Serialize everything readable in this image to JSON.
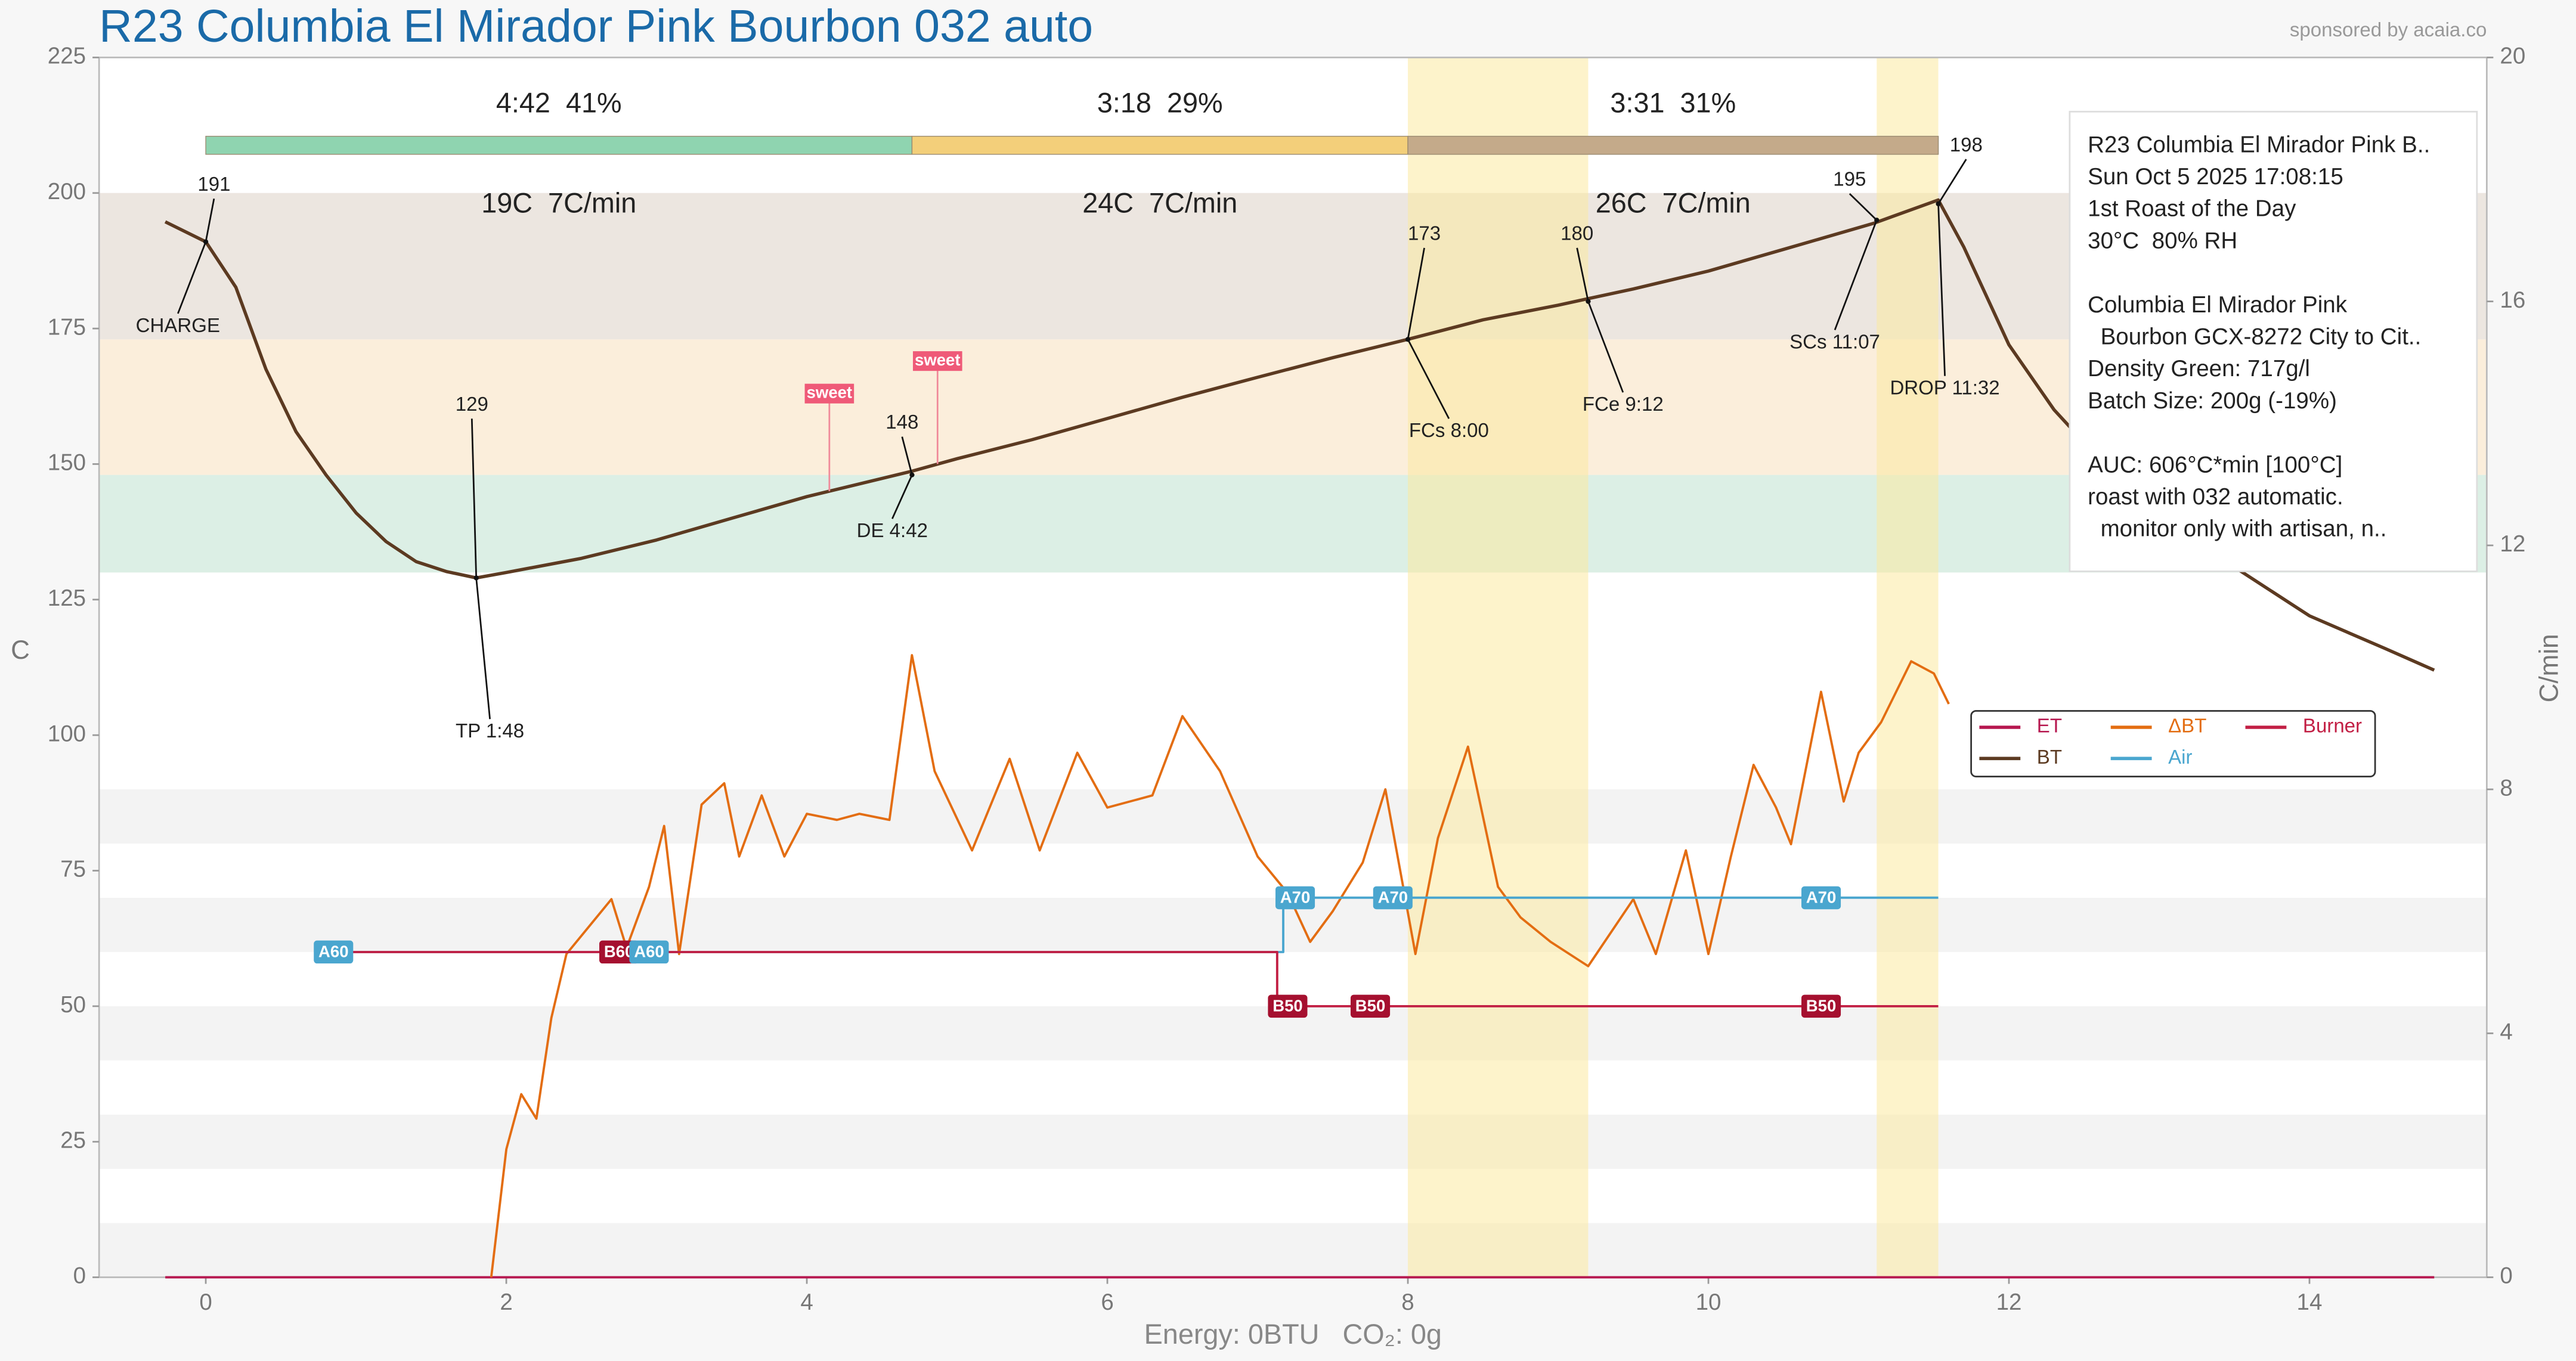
{
  "chart_data": {
    "type": "line",
    "title": "R23 Columbia El Mirador Pink Bourbon 032 auto",
    "watermark": "sponsored by acaia.co",
    "footer": "Energy: 0BTU   CO₂: 0g",
    "ylabel": "C",
    "y2label": "C/min",
    "xlim": [
      -0.71,
      15.18
    ],
    "xticks": [
      0,
      2,
      4,
      6,
      8,
      10,
      12,
      14
    ],
    "ylim": [
      0,
      225
    ],
    "yticks": [
      0,
      25,
      50,
      75,
      100,
      125,
      150,
      175,
      200,
      225
    ],
    "y2lim": [
      0,
      20
    ],
    "y2ticks": [
      0,
      4,
      8,
      12,
      16,
      20
    ],
    "grid": false,
    "legend": "right",
    "series": [
      {
        "name": "ET",
        "color": "#b6174f",
        "x": [
          -0.27,
          14.83
        ],
        "values": [
          0,
          0
        ]
      },
      {
        "name": "BT",
        "color": "#5c3a21",
        "x": [
          -0.27,
          0,
          0.2,
          0.4,
          0.6,
          0.8,
          1.0,
          1.2,
          1.4,
          1.6,
          1.8,
          2.0,
          2.5,
          3.0,
          3.5,
          4.0,
          4.7,
          5.0,
          5.5,
          6.0,
          6.5,
          7.0,
          7.5,
          8.0,
          8.5,
          9.0,
          9.2,
          9.5,
          10.0,
          10.5,
          11.1,
          11.53,
          11.7,
          12.0,
          12.3,
          12.6,
          13.0,
          13.5,
          14.0,
          14.5,
          14.83
        ],
        "values": [
          194.7,
          191,
          182.6,
          167.5,
          156,
          148,
          141,
          135.7,
          132,
          130.2,
          129,
          130,
          132.6,
          136,
          140,
          144,
          148.7,
          151,
          154.5,
          158.4,
          162.3,
          166,
          169.6,
          173,
          176.6,
          179.3,
          180.5,
          182.3,
          185.6,
          189.6,
          194.4,
          198.7,
          190,
          172,
          160,
          151,
          142,
          131,
          122,
          116,
          112
        ]
      },
      {
        "name": "ΔBT",
        "color": "#e36d12",
        "axis": "y2",
        "x": [
          1.9,
          2.0,
          2.1,
          2.2,
          2.3,
          2.4,
          2.6,
          2.7,
          2.8,
          2.95,
          3.05,
          3.15,
          3.3,
          3.45,
          3.55,
          3.7,
          3.85,
          4.0,
          4.2,
          4.35,
          4.55,
          4.7,
          4.85,
          5.1,
          5.35,
          5.55,
          5.8,
          6.0,
          6.3,
          6.5,
          6.75,
          7.0,
          7.2,
          7.35,
          7.5,
          7.7,
          7.85,
          8.05,
          8.2,
          8.4,
          8.6,
          8.75,
          8.95,
          9.2,
          9.5,
          9.65,
          9.85,
          10.0,
          10.15,
          10.3,
          10.45,
          10.55,
          10.75,
          10.9,
          11.0,
          11.15,
          11.35,
          11.5,
          11.6
        ],
        "values": [
          0,
          2.1,
          3.0,
          2.6,
          4.25,
          5.3,
          5.9,
          6.2,
          5.4,
          6.4,
          7.4,
          5.3,
          7.75,
          8.1,
          6.9,
          7.9,
          6.9,
          7.6,
          7.5,
          7.6,
          7.5,
          10.2,
          8.3,
          7.0,
          8.5,
          7.0,
          8.6,
          7.7,
          7.9,
          9.2,
          8.3,
          6.9,
          6.3,
          5.5,
          6.0,
          6.8,
          8.0,
          5.3,
          7.2,
          8.7,
          6.4,
          5.9,
          5.5,
          5.1,
          6.2,
          5.3,
          7.0,
          5.3,
          6.9,
          8.4,
          7.7,
          7.1,
          9.6,
          7.8,
          8.6,
          9.1,
          10.1,
          9.9,
          9.4
        ]
      },
      {
        "name": "Air",
        "color": "#4aa6cf",
        "x": [
          0.72,
          7.17,
          7.17,
          11.53
        ],
        "values": [
          60,
          60,
          70,
          70
        ]
      },
      {
        "name": "Burner",
        "color": "#c21f44",
        "x": [
          0.72,
          7.13,
          7.13,
          11.53
        ],
        "values": [
          60,
          60,
          50,
          50
        ]
      }
    ],
    "step_labels": [
      {
        "text": "A60",
        "x": 0.85,
        "value": 60,
        "series": "Air"
      },
      {
        "text": "B60",
        "x": 2.75,
        "value": 60,
        "series": "Burner"
      },
      {
        "text": "A60",
        "x": 2.95,
        "value": 60,
        "series": "Air"
      },
      {
        "text": "B50",
        "x": 7.2,
        "value": 50,
        "series": "Burner"
      },
      {
        "text": "A70",
        "x": 7.25,
        "value": 70,
        "series": "Air"
      },
      {
        "text": "B50",
        "x": 7.75,
        "value": 50,
        "series": "Burner"
      },
      {
        "text": "A70",
        "x": 7.9,
        "value": 70,
        "series": "Air"
      },
      {
        "text": "B50",
        "x": 10.75,
        "value": 50,
        "series": "Burner"
      },
      {
        "text": "A70",
        "x": 10.75,
        "value": 70,
        "series": "Air"
      }
    ],
    "events": [
      {
        "label": "CHARGE",
        "x": 0,
        "value": 191
      },
      {
        "label": "TP 1:48",
        "x": 1.8,
        "value": 129
      },
      {
        "label": "DE 4:42",
        "x": 4.7,
        "value": 148
      },
      {
        "label": "FCs 8:00",
        "x": 8.0,
        "value": 173
      },
      {
        "label": "FCe 9:12",
        "x": 9.2,
        "value": 180
      },
      {
        "label": "SCs 11:07",
        "x": 11.12,
        "value": 195
      },
      {
        "label": "DROP 11:32",
        "x": 11.53,
        "value": 198
      }
    ],
    "markers": [
      {
        "text": "sweet",
        "x": 4.15,
        "value": 163
      },
      {
        "text": "sweet",
        "x": 4.87,
        "value": 169
      }
    ],
    "phases": [
      {
        "label": "4:42  41%",
        "sub": "19C  7C/min",
        "color": "#8fd4b0"
      },
      {
        "label": "3:18  29%",
        "sub": "24C  7C/min",
        "color": "#f3cf7a"
      },
      {
        "label": "3:31  31%",
        "sub": "26C  7C/min",
        "color": "#c4aa8a"
      }
    ],
    "background_bands": [
      {
        "from": 130,
        "to": 148,
        "color": "#dcefe5"
      },
      {
        "from": 148,
        "to": 173,
        "color": "#fbeedb"
      },
      {
        "from": 173,
        "to": 200,
        "color": "#ece6e0"
      }
    ],
    "info": [
      [
        "R23 Columbia El Mirador Pink B..",
        "Sun Oct 5 2025 17:08:15",
        "1st Roast of the Day",
        "30°C  80% RH"
      ],
      [
        "Columbia El Mirador Pink",
        "  Bourbon GCX-8272 City to Cit..",
        "Density Green: 717g/l",
        "Batch Size: 200g (-19%)"
      ],
      [
        "AUC: 606°C*min [100°C]",
        "roast with 032 automatic.",
        "  monitor only with artisan, n.."
      ]
    ]
  }
}
